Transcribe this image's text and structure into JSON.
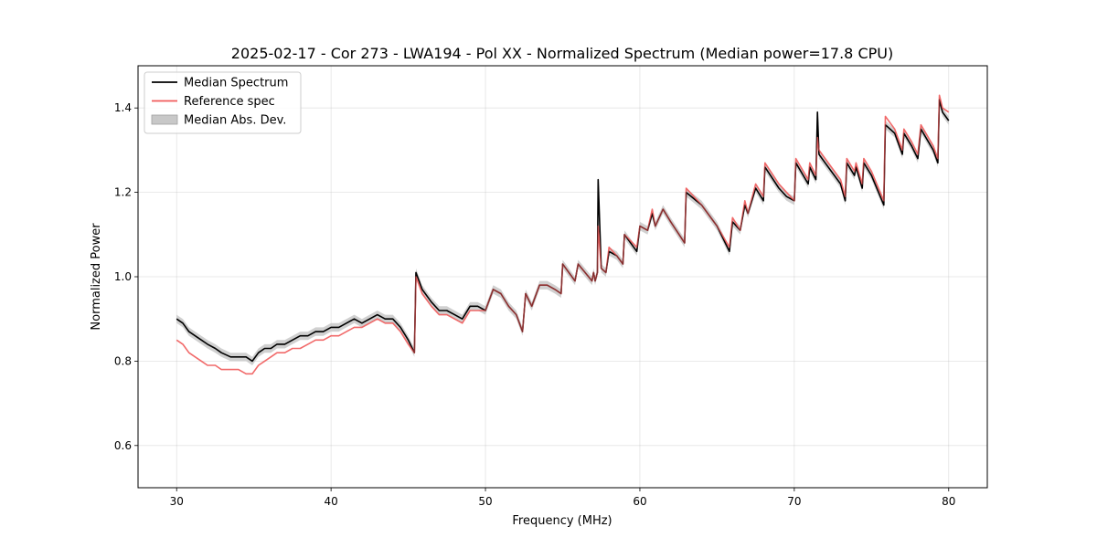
{
  "chart_data": {
    "type": "line",
    "title": "2025-02-17 - Cor 273 - LWA194 - Pol XX - Normalized Spectrum (Median power=17.8 CPU)",
    "xlabel": "Frequency (MHz)",
    "ylabel": "Normalized Power",
    "xlim": [
      27.5,
      82.5
    ],
    "ylim": [
      0.5,
      1.5
    ],
    "xticks": [
      30,
      40,
      50,
      60,
      70,
      80
    ],
    "yticks": [
      0.6,
      0.8,
      1.0,
      1.2,
      1.4
    ],
    "xtick_labels": [
      "30",
      "40",
      "50",
      "60",
      "70",
      "80"
    ],
    "ytick_labels": [
      "0.6",
      "0.8",
      "1.0",
      "1.2",
      "1.4"
    ],
    "grid": true,
    "legend_position": "top-left",
    "mad_halfwidth": 0.01,
    "series": [
      {
        "name": "Median Spectrum",
        "color": "#000000",
        "x": [
          30.0,
          30.4,
          30.8,
          31.2,
          31.6,
          32.0,
          32.5,
          32.9,
          33.5,
          34.0,
          34.5,
          34.9,
          35.3,
          35.7,
          36.1,
          36.5,
          37.0,
          37.5,
          38.0,
          38.5,
          39.0,
          39.5,
          40.0,
          40.5,
          41.0,
          41.5,
          42.0,
          42.5,
          43.0,
          43.5,
          44.0,
          44.5,
          45.0,
          45.4,
          45.5,
          45.9,
          46.5,
          47.0,
          47.5,
          48.0,
          48.5,
          49.0,
          49.5,
          50.0,
          50.5,
          51.0,
          51.5,
          52.0,
          52.4,
          52.6,
          53.0,
          53.5,
          54.0,
          54.5,
          54.9,
          55.0,
          55.8,
          56.0,
          56.9,
          57.0,
          57.1,
          57.25,
          57.3,
          57.5,
          57.8,
          58.0,
          58.5,
          58.9,
          59.0,
          59.8,
          60.0,
          60.5,
          60.8,
          61.0,
          61.5,
          62.0,
          62.9,
          63.0,
          64.0,
          65.0,
          65.8,
          66.0,
          66.5,
          66.8,
          67.0,
          67.5,
          68.0,
          68.1,
          69.0,
          69.5,
          70.0,
          70.1,
          70.9,
          71.0,
          71.4,
          71.5,
          71.6,
          72.0,
          73.0,
          73.3,
          73.4,
          73.9,
          74.0,
          74.4,
          74.5,
          75.0,
          75.8,
          75.9,
          76.5,
          77.0,
          77.1,
          77.6,
          78.0,
          78.2,
          79.0,
          79.3,
          79.4,
          79.6,
          80.0
        ],
        "y": [
          0.9,
          0.89,
          0.87,
          0.86,
          0.85,
          0.84,
          0.83,
          0.82,
          0.81,
          0.81,
          0.81,
          0.8,
          0.82,
          0.83,
          0.83,
          0.84,
          0.84,
          0.85,
          0.86,
          0.86,
          0.87,
          0.87,
          0.88,
          0.88,
          0.89,
          0.9,
          0.89,
          0.9,
          0.91,
          0.9,
          0.9,
          0.88,
          0.85,
          0.82,
          1.01,
          0.97,
          0.94,
          0.92,
          0.92,
          0.91,
          0.9,
          0.93,
          0.93,
          0.92,
          0.97,
          0.96,
          0.93,
          0.91,
          0.87,
          0.96,
          0.93,
          0.98,
          0.98,
          0.97,
          0.96,
          1.03,
          0.99,
          1.03,
          0.99,
          1.01,
          0.99,
          1.01,
          1.23,
          1.02,
          1.01,
          1.06,
          1.05,
          1.03,
          1.1,
          1.06,
          1.12,
          1.11,
          1.15,
          1.12,
          1.16,
          1.13,
          1.08,
          1.2,
          1.17,
          1.12,
          1.06,
          1.13,
          1.11,
          1.17,
          1.15,
          1.21,
          1.18,
          1.26,
          1.21,
          1.19,
          1.18,
          1.27,
          1.22,
          1.26,
          1.23,
          1.39,
          1.29,
          1.27,
          1.22,
          1.18,
          1.27,
          1.24,
          1.26,
          1.21,
          1.27,
          1.24,
          1.17,
          1.36,
          1.34,
          1.29,
          1.34,
          1.31,
          1.28,
          1.35,
          1.3,
          1.27,
          1.42,
          1.39,
          1.37
        ]
      },
      {
        "name": "Reference spec",
        "color": "#f05a5a",
        "x": [
          30.0,
          30.4,
          30.8,
          31.2,
          31.6,
          32.0,
          32.5,
          32.9,
          33.5,
          34.0,
          34.5,
          34.9,
          35.3,
          35.7,
          36.1,
          36.5,
          37.0,
          37.5,
          38.0,
          38.5,
          39.0,
          39.5,
          40.0,
          40.5,
          41.0,
          41.5,
          42.0,
          42.5,
          43.0,
          43.5,
          44.0,
          44.5,
          45.0,
          45.4,
          45.5,
          45.9,
          46.5,
          47.0,
          47.5,
          48.0,
          48.5,
          49.0,
          49.5,
          50.0,
          50.5,
          51.0,
          51.5,
          52.0,
          52.4,
          52.6,
          53.0,
          53.5,
          54.0,
          54.5,
          54.9,
          55.0,
          55.8,
          56.0,
          56.9,
          57.0,
          57.1,
          57.25,
          57.3,
          57.5,
          57.8,
          58.0,
          58.5,
          58.9,
          59.0,
          59.8,
          60.0,
          60.5,
          60.8,
          61.0,
          61.5,
          62.0,
          62.9,
          63.0,
          64.0,
          65.0,
          65.8,
          66.0,
          66.5,
          66.8,
          67.0,
          67.5,
          68.0,
          68.1,
          69.0,
          69.5,
          70.0,
          70.1,
          70.9,
          71.0,
          71.4,
          71.5,
          71.6,
          72.0,
          73.0,
          73.3,
          73.4,
          73.9,
          74.0,
          74.4,
          74.5,
          75.0,
          75.8,
          75.9,
          76.5,
          77.0,
          77.1,
          77.6,
          78.0,
          78.2,
          79.0,
          79.3,
          79.4,
          79.6,
          80.0
        ],
        "y": [
          0.85,
          0.84,
          0.82,
          0.81,
          0.8,
          0.79,
          0.79,
          0.78,
          0.78,
          0.78,
          0.77,
          0.77,
          0.79,
          0.8,
          0.81,
          0.82,
          0.82,
          0.83,
          0.83,
          0.84,
          0.85,
          0.85,
          0.86,
          0.86,
          0.87,
          0.88,
          0.88,
          0.89,
          0.9,
          0.89,
          0.89,
          0.87,
          0.84,
          0.82,
          1.0,
          0.96,
          0.93,
          0.91,
          0.91,
          0.9,
          0.89,
          0.92,
          0.92,
          0.92,
          0.97,
          0.96,
          0.93,
          0.91,
          0.87,
          0.96,
          0.93,
          0.98,
          0.98,
          0.97,
          0.96,
          1.03,
          0.99,
          1.03,
          0.99,
          1.01,
          0.99,
          1.01,
          1.12,
          1.02,
          1.01,
          1.07,
          1.05,
          1.03,
          1.1,
          1.07,
          1.12,
          1.11,
          1.16,
          1.12,
          1.16,
          1.13,
          1.08,
          1.21,
          1.17,
          1.12,
          1.07,
          1.14,
          1.11,
          1.18,
          1.15,
          1.22,
          1.19,
          1.27,
          1.22,
          1.2,
          1.18,
          1.28,
          1.23,
          1.27,
          1.24,
          1.33,
          1.3,
          1.28,
          1.23,
          1.19,
          1.28,
          1.25,
          1.27,
          1.22,
          1.28,
          1.25,
          1.18,
          1.38,
          1.35,
          1.3,
          1.35,
          1.32,
          1.29,
          1.36,
          1.31,
          1.28,
          1.43,
          1.4,
          1.39
        ]
      }
    ],
    "legend": [
      {
        "label": "Median Spectrum",
        "kind": "line",
        "color": "#000000"
      },
      {
        "label": "Reference spec",
        "kind": "line",
        "color": "#f05a5a"
      },
      {
        "label": "Median Abs. Dev.",
        "kind": "patch",
        "color": "#c8c8c8"
      }
    ]
  }
}
